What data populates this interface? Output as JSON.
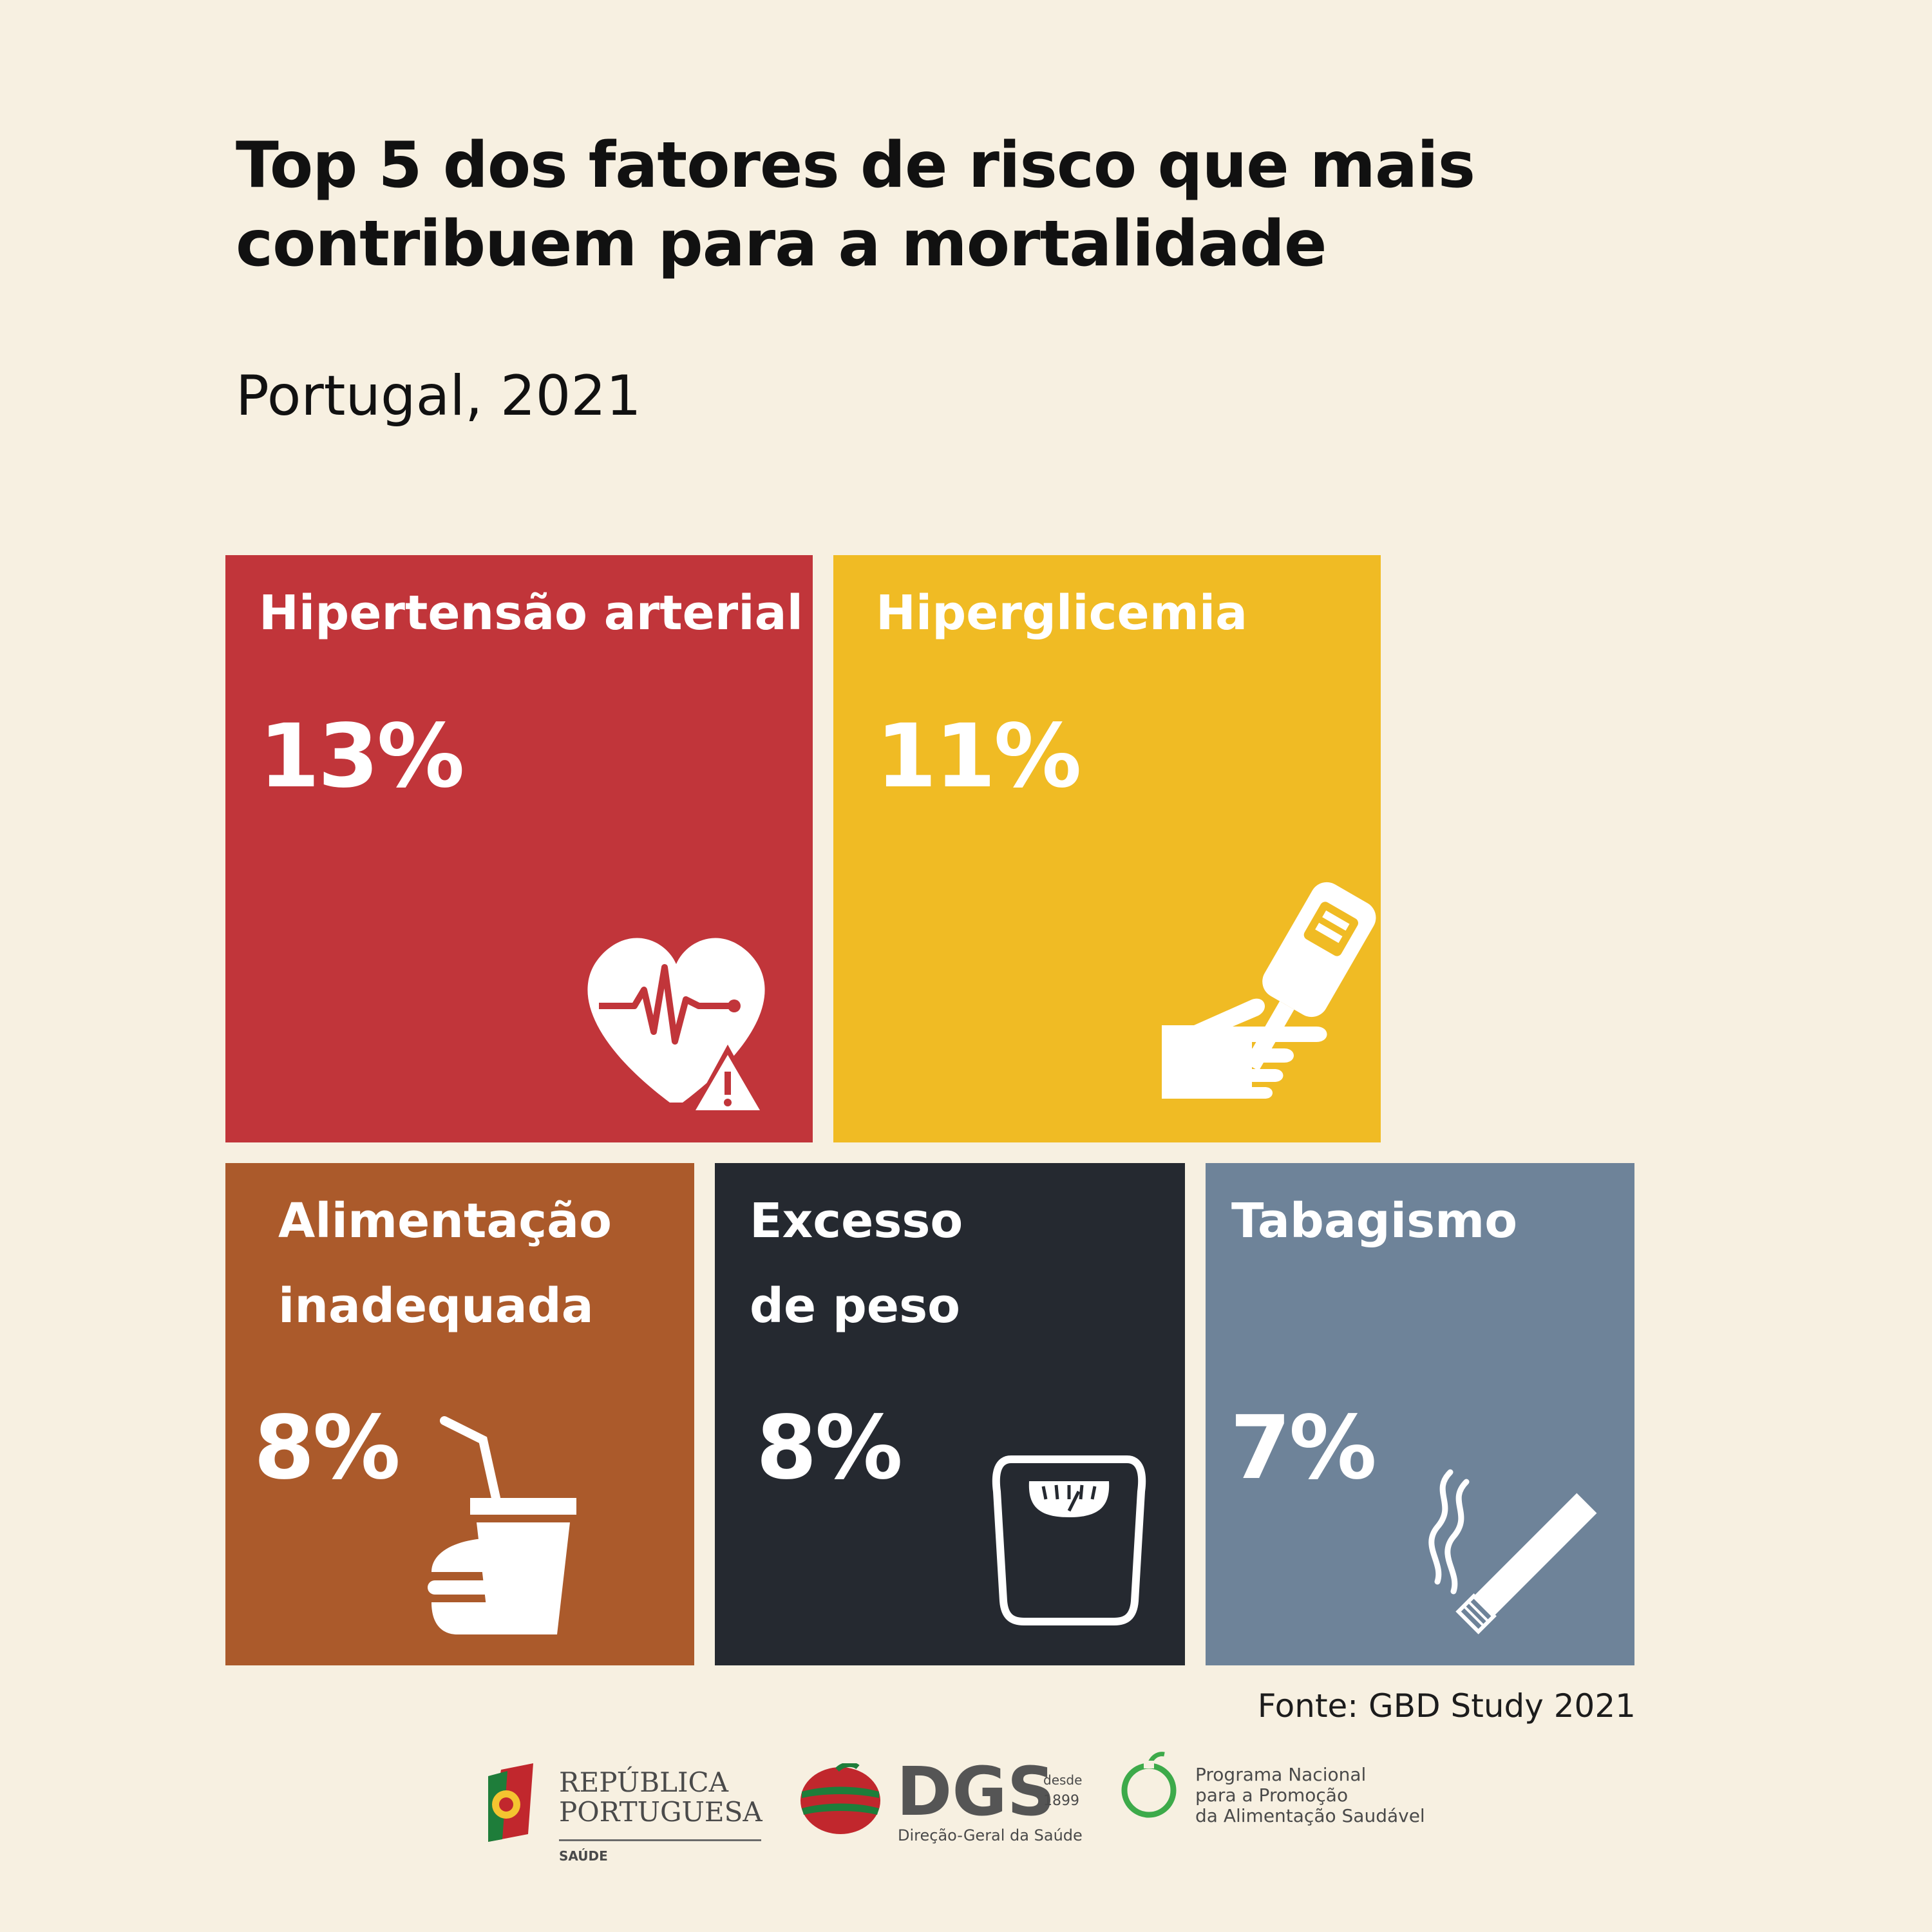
{
  "title_line1": "Top 5 dos fatores de risco que mais",
  "title_line2": "contribuem para a mortalidade",
  "subtitle": "Portugal, 2021",
  "chart_data": {
    "type": "treemap",
    "title": "Top 5 dos fatores de risco que mais contribuem para a mortalidade",
    "subtitle": "Portugal, 2021",
    "unit": "%",
    "items": [
      {
        "label_lines": [
          "Hipertensão arterial"
        ],
        "value": 13,
        "display": "13%",
        "color": "#c1353a",
        "icon": "heart-pulse-warning-icon"
      },
      {
        "label_lines": [
          "Hiperglicemia"
        ],
        "value": 11,
        "display": "11%",
        "color": "#f0bb24",
        "icon": "glucose-meter-hand-icon"
      },
      {
        "label_lines": [
          "Alimentação",
          "inadequada"
        ],
        "value": 8,
        "display": "8%",
        "color": "#ab5a2b",
        "icon": "burger-drink-icon"
      },
      {
        "label_lines": [
          "Excesso",
          "de peso"
        ],
        "value": 8,
        "display": "8%",
        "color": "#252930",
        "icon": "bathroom-scale-icon"
      },
      {
        "label_lines": [
          "Tabagismo"
        ],
        "value": 7,
        "display": "7%",
        "color": "#6e8399",
        "icon": "cigarette-icon"
      }
    ]
  },
  "source": "Fonte: GBD Study 2021",
  "logos": {
    "republica_line1": "REPÚBLICA",
    "republica_line2": "PORTUGUESA",
    "republica_sub": "SAÚDE",
    "dgs": "DGS",
    "dgs_since": "desde",
    "dgs_year": "1899",
    "dgs_sub": "Direção-Geral da Saúde",
    "pnpas_line1": "Programa Nacional",
    "pnpas_line2": "para a Promoção",
    "pnpas_line3": "da Alimentação Saudável"
  }
}
